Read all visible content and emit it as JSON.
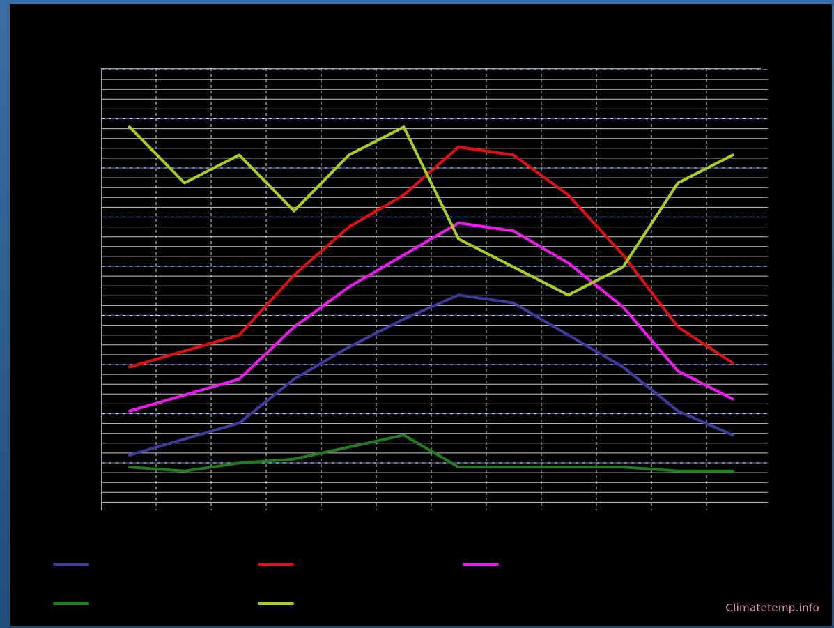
{
  "watermark": "Climatetemp.info",
  "chart_data": {
    "type": "line",
    "title": "",
    "xlabel": "",
    "ylabel": "",
    "x": [
      1,
      2,
      3,
      4,
      5,
      6,
      7,
      8,
      9,
      10,
      11,
      12
    ],
    "ylim": [
      0,
      100
    ],
    "grid": true,
    "legend_position": "bottom",
    "series": [
      {
        "color": "#3c3c9e",
        "values": [
          11,
          15,
          19,
          30,
          38,
          45,
          51,
          49,
          41,
          33,
          22,
          16
        ]
      },
      {
        "color": "#e01010",
        "values": [
          33,
          37,
          41,
          56,
          68,
          76,
          88,
          86,
          76,
          61,
          43,
          34
        ]
      },
      {
        "color": "#ef18ef",
        "values": [
          22,
          26,
          30,
          43,
          53,
          61,
          69,
          67,
          59,
          48,
          32,
          25
        ]
      },
      {
        "color": "#1f7f1f",
        "values": [
          8,
          7,
          9,
          10,
          13,
          16,
          8,
          8,
          8,
          8,
          7,
          7
        ]
      },
      {
        "color": "#a9cf1e",
        "values": [
          93,
          79,
          86,
          72,
          86,
          93,
          65,
          58,
          51,
          58,
          79,
          86
        ]
      }
    ]
  }
}
